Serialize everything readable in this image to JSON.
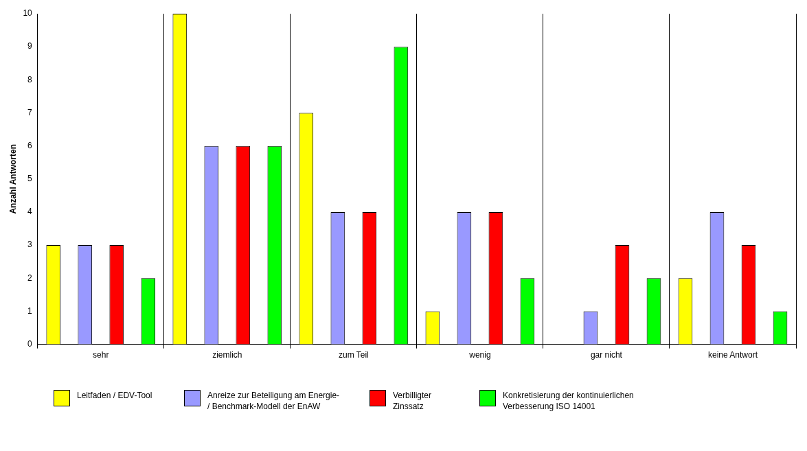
{
  "chart_data": {
    "type": "bar",
    "ylabel": "Anzahl Antworten",
    "categories": [
      "sehr",
      "ziemlich",
      "zum Teil",
      "wenig",
      "gar nicht",
      "keine Antwort"
    ],
    "series": [
      {
        "name": "Leitfaden / EDV-Tool",
        "color": "#ffff00",
        "values": [
          3,
          10,
          7,
          1,
          0,
          2
        ]
      },
      {
        "name": "Anreize zur Beteiligung am Energie- / Benchmark-Modell der EnAW",
        "color": "#9999ff",
        "values": [
          3,
          6,
          4,
          4,
          1,
          4
        ]
      },
      {
        "name": "Verbilligter Zinssatz",
        "color": "#ff0000",
        "values": [
          3,
          6,
          4,
          4,
          3,
          3
        ]
      },
      {
        "name": "Konkretisierung der kontinuierlichen Verbesserung ISO 14001",
        "color": "#00ff00",
        "values": [
          2,
          6,
          9,
          2,
          2,
          1
        ]
      }
    ],
    "ylim": [
      0,
      10
    ],
    "yticks": [
      0,
      1,
      2,
      3,
      4,
      5,
      6,
      7,
      8,
      9,
      10
    ],
    "grid": "x",
    "legend": "bottom"
  }
}
